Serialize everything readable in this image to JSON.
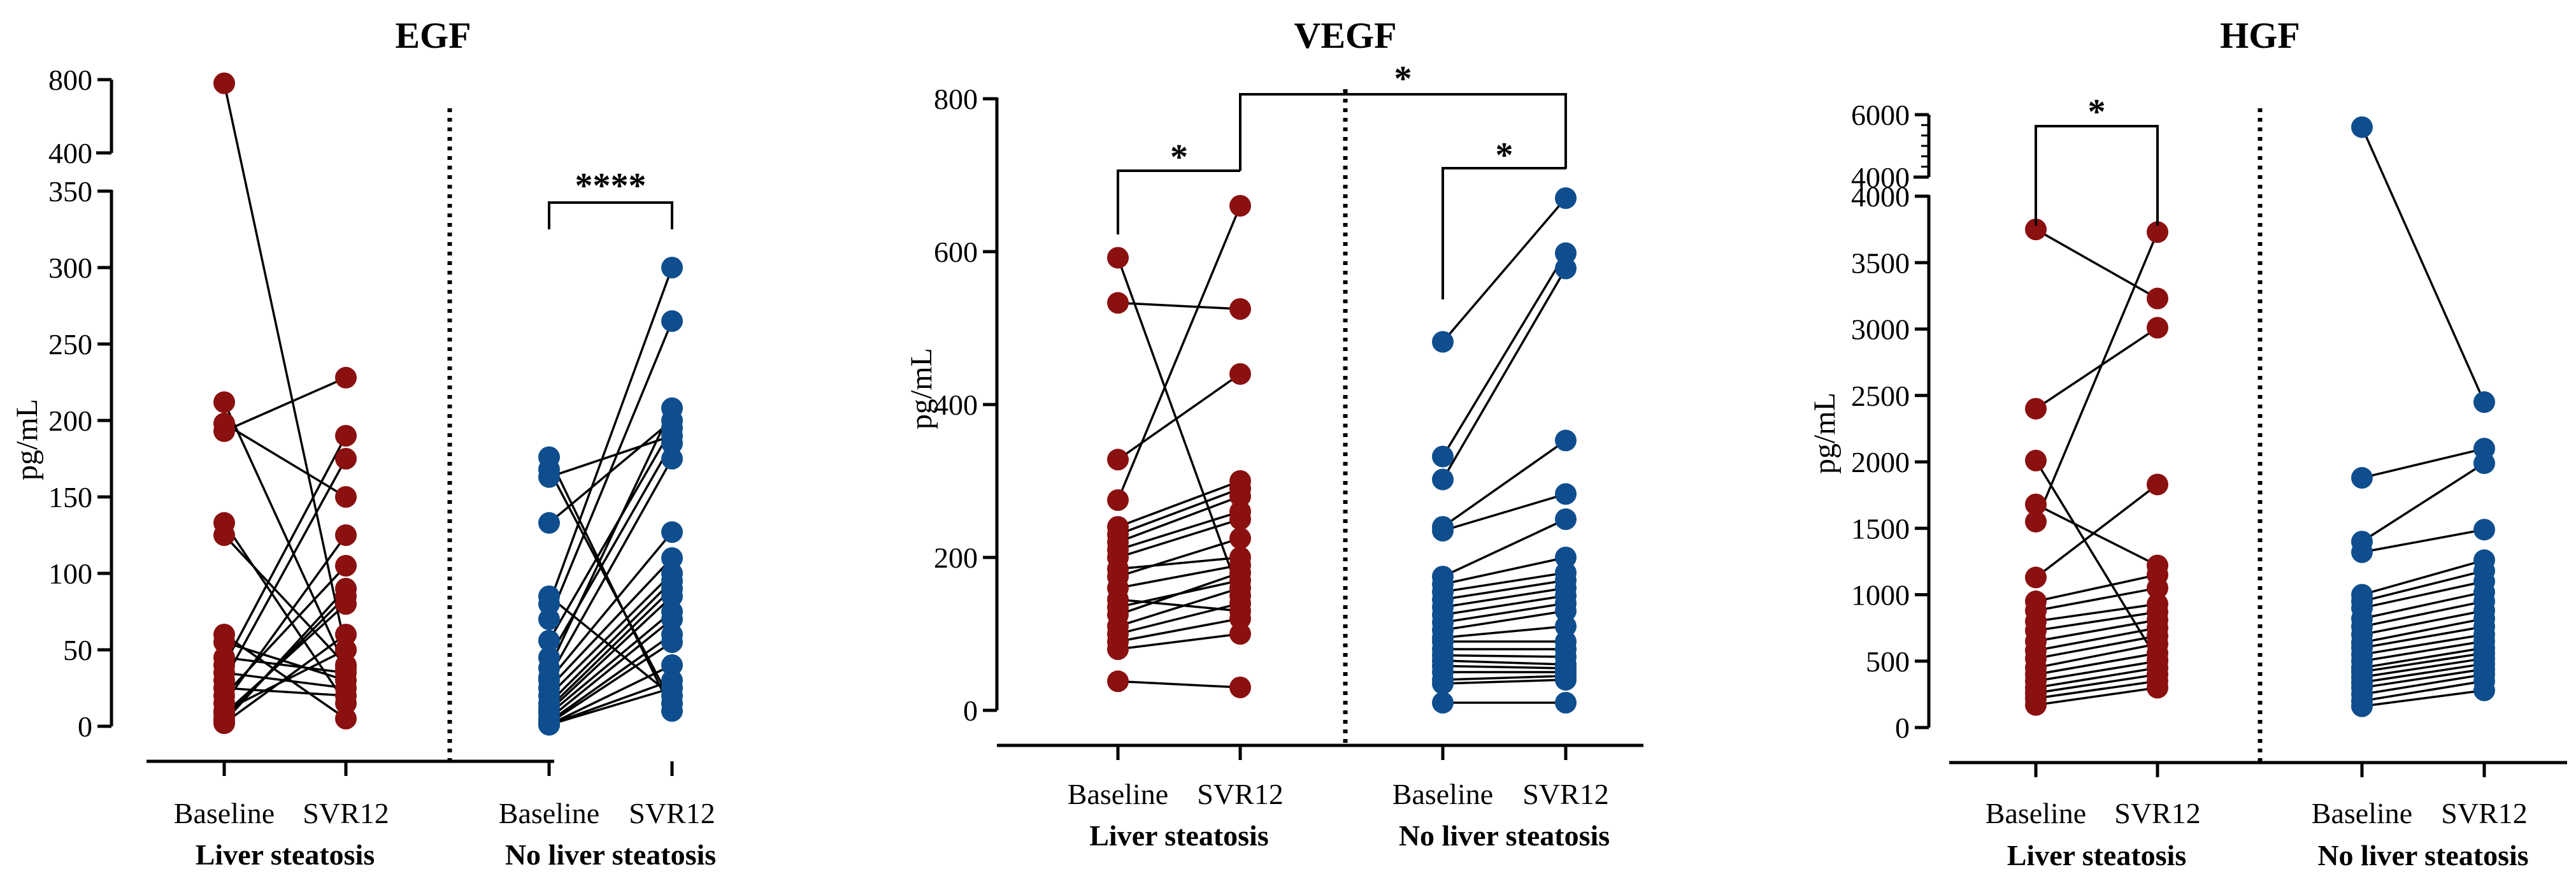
{
  "colors": {
    "steatosis": "#8b1010",
    "no_steatosis": "#0f4e8e"
  },
  "chart_data": [
    {
      "type": "scatter",
      "title": "EGF",
      "ylabel": "pg/mL",
      "group_labels": [
        "Baseline",
        "SVR12"
      ],
      "panel_labels": [
        "Liver steatosis",
        "No liver steatosis"
      ],
      "ylim": [
        0,
        350
      ],
      "yticks": [
        "0",
        "50",
        "100",
        "150",
        "200",
        "250",
        "300",
        "350"
      ],
      "broken_axis": {
        "ticks": [
          "400",
          "800"
        ],
        "range": [
          400,
          800
        ]
      },
      "significance": [
        {
          "label": "****",
          "comparison": "No liver steatosis: Baseline vs SVR12"
        }
      ],
      "series": [
        {
          "name": "Liver steatosis",
          "color_key": "steatosis",
          "pairs": [
            [
              780,
              50
            ],
            [
              212,
              38
            ],
            [
              198,
              150
            ],
            [
              193,
              228
            ],
            [
              133,
              15
            ],
            [
              125,
              40
            ],
            [
              60,
              5
            ],
            [
              55,
              30
            ],
            [
              45,
              35
            ],
            [
              40,
              190
            ],
            [
              35,
              25
            ],
            [
              30,
              175
            ],
            [
              25,
              20
            ],
            [
              20,
              105
            ],
            [
              15,
              125
            ],
            [
              10,
              50
            ],
            [
              8,
              80
            ],
            [
              5,
              85
            ],
            [
              3,
              90
            ],
            [
              2,
              60
            ]
          ]
        },
        {
          "name": "No liver steatosis",
          "color_key": "no_steatosis",
          "pairs": [
            [
              176,
              10
            ],
            [
              168,
              15
            ],
            [
              163,
              190
            ],
            [
              133,
              200
            ],
            [
              85,
              20
            ],
            [
              80,
              300
            ],
            [
              70,
              265
            ],
            [
              56,
              195
            ],
            [
              45,
              185
            ],
            [
              38,
              208
            ],
            [
              32,
              175
            ],
            [
              30,
              127
            ],
            [
              25,
              110
            ],
            [
              20,
              100
            ],
            [
              15,
              95
            ],
            [
              12,
              90
            ],
            [
              10,
              85
            ],
            [
              8,
              75
            ],
            [
              5,
              70
            ],
            [
              3,
              60
            ],
            [
              2,
              55
            ],
            [
              1,
              40
            ],
            [
              1,
              30
            ],
            [
              1,
              25
            ]
          ]
        }
      ]
    },
    {
      "type": "scatter",
      "title": "VEGF",
      "ylabel": "pg/mL",
      "group_labels": [
        "Baseline",
        "SVR12"
      ],
      "panel_labels": [
        "Liver steatosis",
        "No liver steatosis"
      ],
      "ylim": [
        0,
        800
      ],
      "yticks": [
        "0",
        "200",
        "400",
        "600",
        "800"
      ],
      "significance": [
        {
          "label": "*",
          "comparison": "Liver steatosis: Baseline vs SVR12"
        },
        {
          "label": "*",
          "comparison": "Liver steatosis SVR12 vs No liver steatosis SVR12"
        },
        {
          "label": "*",
          "comparison": "No liver steatosis: Baseline vs SVR12"
        }
      ],
      "series": [
        {
          "name": "Liver steatosis",
          "color_key": "steatosis",
          "pairs": [
            [
              592,
              150
            ],
            [
              533,
              525
            ],
            [
              328,
              440
            ],
            [
              275,
              660
            ],
            [
              240,
              300
            ],
            [
              230,
              290
            ],
            [
              220,
              280
            ],
            [
              210,
              260
            ],
            [
              200,
              250
            ],
            [
              185,
              200
            ],
            [
              175,
              225
            ],
            [
              160,
              190
            ],
            [
              145,
              130
            ],
            [
              135,
              170
            ],
            [
              125,
              180
            ],
            [
              110,
              160
            ],
            [
              100,
              140
            ],
            [
              90,
              120
            ],
            [
              80,
              100
            ],
            [
              38,
              30
            ]
          ]
        },
        {
          "name": "No liver steatosis",
          "color_key": "no_steatosis",
          "pairs": [
            [
              482,
              670
            ],
            [
              332,
              598
            ],
            [
              302,
              578
            ],
            [
              240,
              353
            ],
            [
              235,
              283
            ],
            [
              175,
              250
            ],
            [
              165,
              200
            ],
            [
              155,
              180
            ],
            [
              145,
              170
            ],
            [
              135,
              160
            ],
            [
              125,
              150
            ],
            [
              115,
              140
            ],
            [
              105,
              130
            ],
            [
              95,
              110
            ],
            [
              90,
              90
            ],
            [
              80,
              80
            ],
            [
              72,
              70
            ],
            [
              65,
              60
            ],
            [
              58,
              55
            ],
            [
              50,
              50
            ],
            [
              40,
              45
            ],
            [
              35,
              40
            ],
            [
              10,
              10
            ]
          ]
        }
      ]
    },
    {
      "type": "scatter",
      "title": "HGF",
      "ylabel": "pg/mL",
      "group_labels": [
        "Baseline",
        "SVR12"
      ],
      "panel_labels": [
        "Liver steatosis",
        "No liver steatosis"
      ],
      "ylim": [
        0,
        4000
      ],
      "yticks": [
        "0",
        "500",
        "1000",
        "1500",
        "2000",
        "2500",
        "3000",
        "3500",
        "4000"
      ],
      "broken_axis": {
        "ticks": [
          "4000",
          "6000"
        ],
        "range": [
          4000,
          6000
        ]
      },
      "significance": [
        {
          "label": "*",
          "comparison": "Liver steatosis: Baseline vs SVR12"
        }
      ],
      "series": [
        {
          "name": "Liver steatosis",
          "color_key": "steatosis",
          "pairs": [
            [
              3750,
              3230
            ],
            [
              2400,
              3010
            ],
            [
              2010,
              510
            ],
            [
              1680,
              1220
            ],
            [
              1550,
              3730
            ],
            [
              1130,
              1830
            ],
            [
              950,
              1150
            ],
            [
              880,
              1050
            ],
            [
              800,
              930
            ],
            [
              730,
              870
            ],
            [
              650,
              810
            ],
            [
              580,
              750
            ],
            [
              520,
              690
            ],
            [
              450,
              630
            ],
            [
              400,
              560
            ],
            [
              350,
              500
            ],
            [
              300,
              450
            ],
            [
              260,
              400
            ],
            [
              220,
              350
            ],
            [
              170,
              300
            ]
          ]
        },
        {
          "name": "No liver steatosis",
          "color_key": "no_steatosis",
          "pairs": [
            [
              5600,
              2450
            ],
            [
              1880,
              2100
            ],
            [
              1400,
              1990
            ],
            [
              1320,
              1490
            ],
            [
              1000,
              1260
            ],
            [
              950,
              1180
            ],
            [
              900,
              1100
            ],
            [
              820,
              1020
            ],
            [
              760,
              950
            ],
            [
              700,
              880
            ],
            [
              640,
              820
            ],
            [
              600,
              760
            ],
            [
              550,
              700
            ],
            [
              500,
              650
            ],
            [
              450,
              600
            ],
            [
              420,
              560
            ],
            [
              380,
              520
            ],
            [
              340,
              480
            ],
            [
              300,
              440
            ],
            [
              250,
              400
            ],
            [
              200,
              350
            ],
            [
              160,
              280
            ]
          ]
        }
      ]
    }
  ]
}
